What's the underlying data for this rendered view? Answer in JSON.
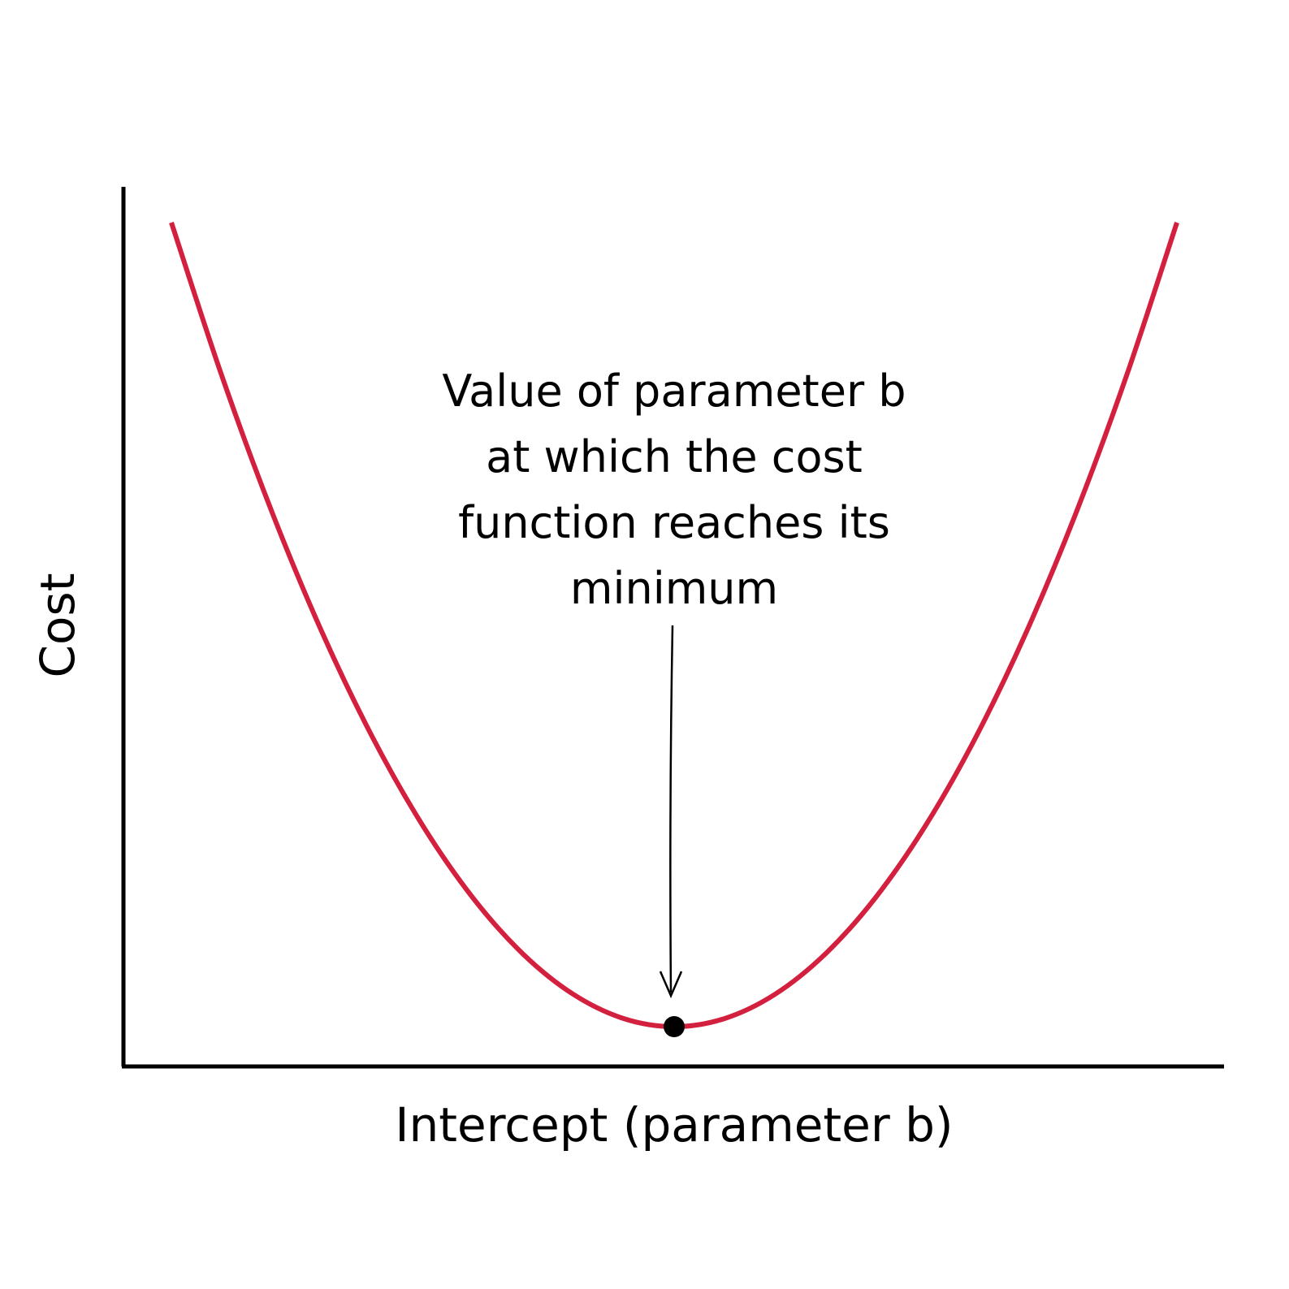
{
  "chart_data": {
    "type": "line",
    "title": "",
    "xlabel": "Intercept (parameter b)",
    "ylabel": "Cost",
    "grid": false,
    "ticks_shown": false,
    "series": [
      {
        "color": "#d4203f",
        "x": [
          -1.0,
          -0.9,
          -0.8,
          -0.7,
          -0.6,
          -0.5,
          -0.4,
          -0.3,
          -0.2,
          -0.1,
          0.0,
          0.1,
          0.2,
          0.3,
          0.4,
          0.5,
          0.6,
          0.7,
          0.8,
          0.9,
          1.0
        ],
        "y": [
          1.0,
          0.81,
          0.64,
          0.49,
          0.36,
          0.25,
          0.16,
          0.09,
          0.04,
          0.01,
          0.0,
          0.01,
          0.04,
          0.09,
          0.16,
          0.25,
          0.36,
          0.49,
          0.64,
          0.81,
          1.0
        ]
      }
    ],
    "minimum_point": {
      "x": 0.0,
      "y": 0.0,
      "color": "#000000"
    },
    "annotation": {
      "lines": [
        "Value of parameter b",
        "at which the cost",
        "function reaches its",
        "minimum"
      ]
    },
    "axis_color": "#000000"
  }
}
